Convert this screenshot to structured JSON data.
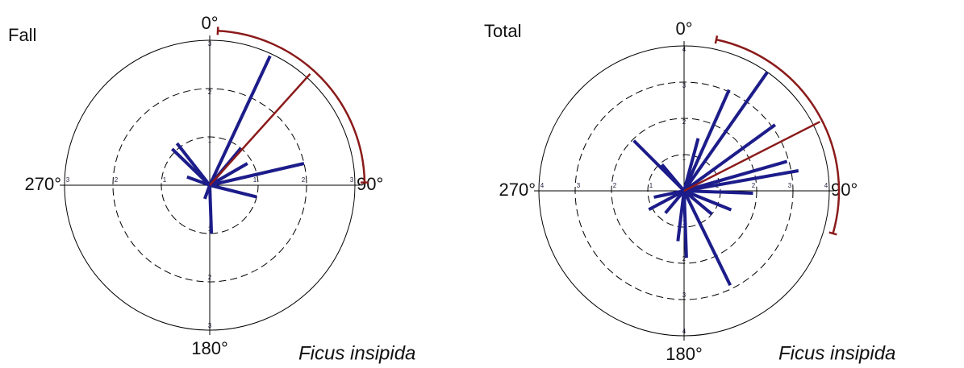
{
  "chart_data": [
    {
      "type": "rose",
      "title": "Fall",
      "annotation": "Ficus insipida",
      "angle_labels": [
        "0°",
        "90°",
        "180°",
        "270°"
      ],
      "rlim": [
        0,
        3
      ],
      "rticks": [
        1,
        2,
        3
      ],
      "angles": [
        25,
        40,
        60,
        77,
        104,
        178,
        314,
        322,
        290,
        200
      ],
      "values": [
        2.95,
        1.0,
        0.9,
        2.0,
        1.0,
        1.0,
        1.08,
        1.1,
        0.5,
        0.3
      ],
      "color": "#1c1c8a",
      "mean_angle": 42,
      "mean_length": 3.1,
      "mean_color": "#8b1a1a",
      "ci": [
        3,
        89
      ]
    },
    {
      "type": "rose",
      "title": "Total",
      "annotation": "Ficus insipida",
      "angle_labels": [
        "0°",
        "90°",
        "180°",
        "270°"
      ],
      "rlim": [
        0,
        4
      ],
      "rticks": [
        1,
        2,
        3,
        4
      ],
      "angles": [
        35,
        24,
        54,
        74,
        80,
        92,
        112,
        154,
        178,
        187,
        315,
        242,
        258,
        320,
        15,
        130,
        220
      ],
      "values": [
        4.0,
        3.05,
        3.1,
        2.95,
        3.2,
        1.9,
        1.4,
        2.9,
        1.85,
        1.4,
        1.96,
        1.1,
        0.85,
        0.95,
        1.5,
        1.0,
        0.8
      ],
      "color": "#1c1c8a",
      "mean_angle": 63,
      "mean_length": 4.2,
      "mean_color": "#8b1a1a",
      "ci": [
        12,
        106
      ]
    }
  ]
}
